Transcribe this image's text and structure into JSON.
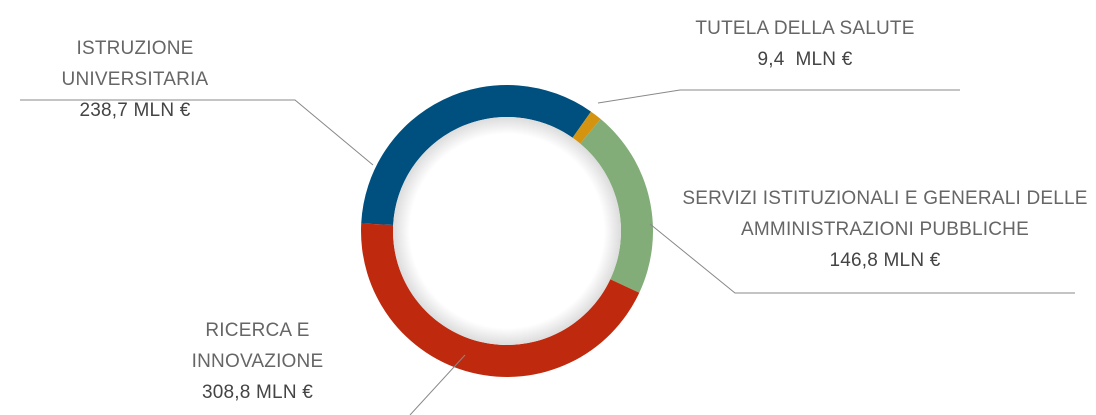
{
  "chart_data": {
    "type": "pie",
    "donut": true,
    "categories": [
      "ISTRUZIONE UNIVERSITARIA",
      "TUTELA DELLA SALUTE",
      "SERVIZI ISTITUZIONALI E GENERALI DELLE AMMINISTRAZIONI PUBBLICHE",
      "RICERCA E INNOVAZIONE"
    ],
    "values": [
      238.7,
      9.4,
      146.8,
      308.8
    ],
    "value_labels": [
      "238,7 MLN €",
      "9,4  MLN €",
      "146,8 MLN €",
      "308,8 MLN €"
    ],
    "colors": [
      "#00507f",
      "#d4940f",
      "#82ad78",
      "#bf2a0e"
    ]
  }
}
